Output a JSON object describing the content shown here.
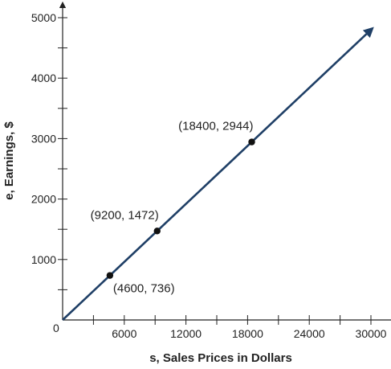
{
  "chart_data": {
    "type": "line",
    "xlabel": "s, Sales Prices in Dollars",
    "ylabel": "e, Earnings, $",
    "xlim": [
      0,
      31000
    ],
    "ylim": [
      0,
      5000
    ],
    "x_ticks": [
      6000,
      12000,
      18000,
      24000,
      30000
    ],
    "x_minor_ticks": [
      3000,
      9000,
      15000,
      21000,
      27000
    ],
    "y_ticks": [
      1000,
      2000,
      3000,
      4000,
      5000
    ],
    "y_minor_ticks": [
      500,
      1500,
      2500,
      3500,
      4500
    ],
    "x_tick_labels": [
      "6000",
      "12000",
      "18000",
      "24000",
      "30000"
    ],
    "y_tick_labels": [
      "1000",
      "2000",
      "3000",
      "4000",
      "5000"
    ],
    "origin_label": "0",
    "line": {
      "x": [
        0,
        30000
      ],
      "y": [
        0,
        4800
      ],
      "color": "#1f3f66",
      "arrow": true
    },
    "points": [
      {
        "x": 4600,
        "y": 736,
        "label": "(4600, 736)",
        "label_side": "below-right"
      },
      {
        "x": 9200,
        "y": 1472,
        "label": "(9200, 1472)",
        "label_side": "above-left"
      },
      {
        "x": 18400,
        "y": 2944,
        "label": "(18400, 2944)",
        "label_side": "above-left"
      }
    ],
    "grid": false,
    "legend": "none"
  }
}
